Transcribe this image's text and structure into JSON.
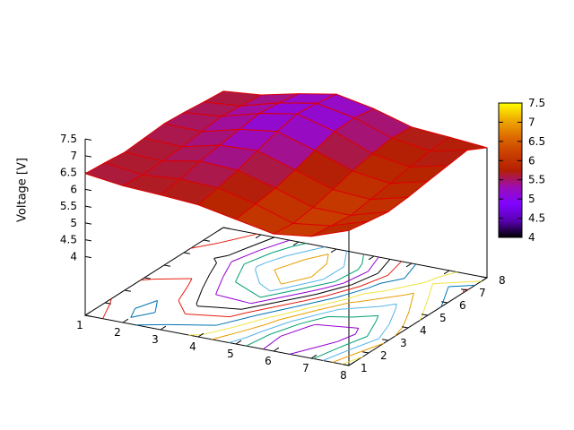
{
  "chart_data": {
    "type": "surface",
    "title": "",
    "zlabel": "Voltage [V]",
    "x": [
      1,
      2,
      3,
      4,
      5,
      6,
      7,
      8
    ],
    "y": [
      1,
      2,
      3,
      4,
      5,
      6,
      7,
      8
    ],
    "z_values": [
      [
        6.47,
        6.32,
        6.26,
        6.18,
        5.96,
        5.74,
        5.88,
        6.27
      ],
      [
        6.42,
        6.27,
        6.36,
        6.31,
        6.04,
        5.68,
        5.82,
        6.17
      ],
      [
        6.36,
        6.31,
        6.52,
        6.46,
        6.14,
        5.78,
        5.76,
        6.08
      ],
      [
        6.41,
        6.36,
        6.62,
        6.67,
        6.31,
        5.94,
        5.86,
        6.14
      ],
      [
        6.46,
        6.44,
        6.72,
        6.87,
        6.52,
        6.12,
        5.96,
        6.24
      ],
      [
        6.42,
        6.52,
        6.82,
        7.02,
        6.71,
        6.26,
        6.08,
        6.33
      ],
      [
        6.36,
        6.46,
        6.76,
        6.96,
        6.74,
        6.36,
        6.18,
        6.42
      ],
      [
        6.31,
        6.41,
        6.66,
        6.86,
        6.64,
        6.31,
        6.22,
        6.12
      ]
    ],
    "x_tick_labels": [
      "1",
      "2",
      "3",
      "4",
      "5",
      "6",
      "7",
      "8"
    ],
    "y_tick_labels": [
      "1",
      "2",
      "3",
      "4",
      "5",
      "6",
      "7",
      "8"
    ],
    "z_ticks": [
      {
        "v": 4,
        "label": "4"
      },
      {
        "v": 4.5,
        "label": "4.5"
      },
      {
        "v": 5,
        "label": "5"
      },
      {
        "v": 5.5,
        "label": "5.5"
      },
      {
        "v": 6,
        "label": "6"
      },
      {
        "v": 6.5,
        "label": "6.5"
      },
      {
        "v": 7,
        "label": "7"
      },
      {
        "v": 7.5,
        "label": "7.5"
      }
    ],
    "zlim": [
      4,
      7.5
    ],
    "contour_levels": [
      5.8,
      5.9,
      6.0,
      6.1,
      6.2,
      6.3,
      6.4,
      6.5,
      6.6,
      6.7,
      6.8,
      6.9
    ],
    "contour_colors": [
      "#9400d3",
      "#009e73",
      "#56b4e9",
      "#e69f00",
      "#f0e442",
      "#0072b2",
      "#e51e10",
      "#000000"
    ],
    "mesh_color": "#dd0000",
    "surface_palette_stops": [
      {
        "t": 0,
        "color": "#000000"
      },
      {
        "t": 0.125,
        "color": "#5a00b4"
      },
      {
        "t": 0.25,
        "color": "#8004ff"
      },
      {
        "t": 0.375,
        "color": "#9c0db4"
      },
      {
        "t": 0.5,
        "color": "#b42000"
      },
      {
        "t": 0.625,
        "color": "#ca3e00"
      },
      {
        "t": 0.75,
        "color": "#dd6c00"
      },
      {
        "t": 0.875,
        "color": "#efab00"
      },
      {
        "t": 1,
        "color": "#ffff00"
      }
    ],
    "colorbar": {
      "min": 4,
      "max": 7.5,
      "border_color": "#000000",
      "ticks": [
        {
          "v": 4,
          "label": "4"
        },
        {
          "v": 4.5,
          "label": "4.5"
        },
        {
          "v": 5,
          "label": "5"
        },
        {
          "v": 5.5,
          "label": "5.5"
        },
        {
          "v": 6,
          "label": "6"
        },
        {
          "v": 6.5,
          "label": "6.5"
        },
        {
          "v": 7,
          "label": "7"
        },
        {
          "v": 7.5,
          "label": "7.5"
        }
      ]
    },
    "background": "#ffffff",
    "text_color": "#000000"
  }
}
